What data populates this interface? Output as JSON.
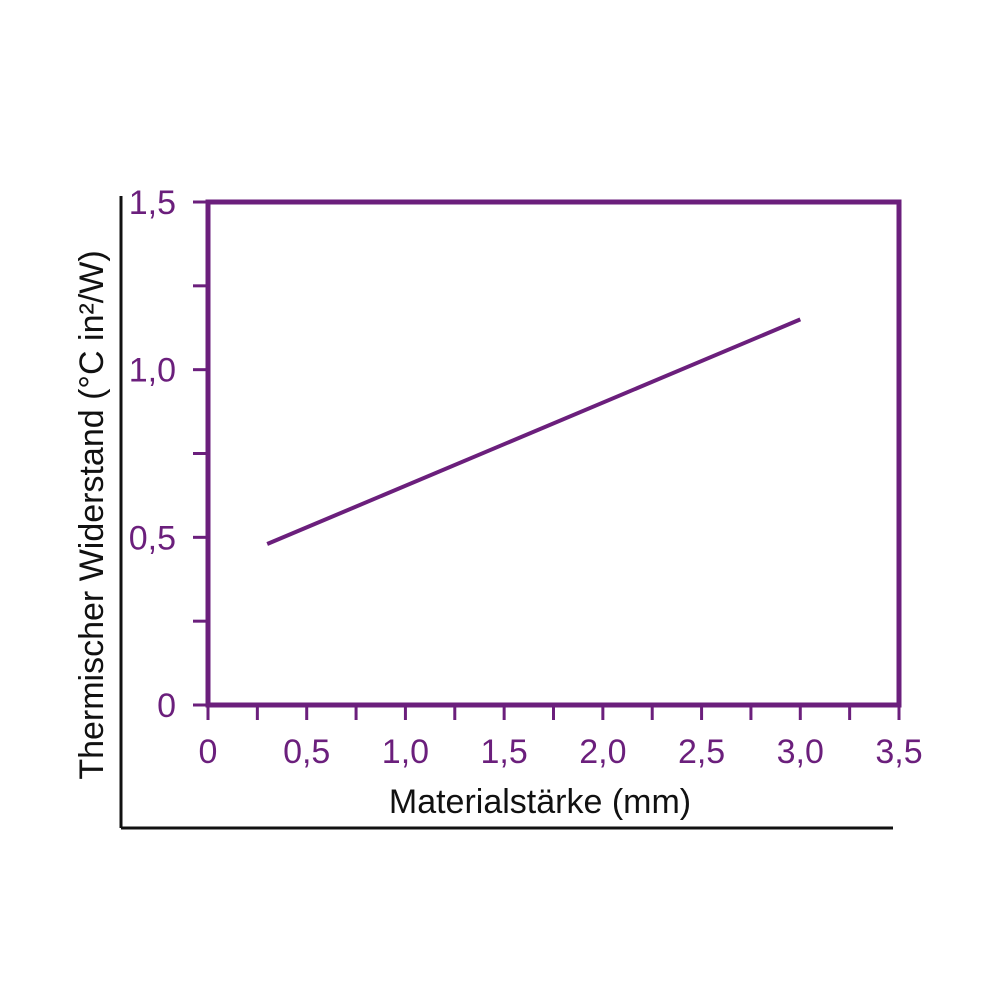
{
  "colors": {
    "accent": "#6b1f7c",
    "line": "#6b1f7c",
    "outer_axis": "#111111"
  },
  "chart_data": {
    "type": "line",
    "title": "",
    "xlabel": "Materialstärke (mm)",
    "ylabel": "Thermischer Widerstand (°C in²/W)",
    "xlim": [
      0,
      3.5
    ],
    "ylim": [
      0,
      1.5
    ],
    "x_ticks": [
      "0",
      "0,5",
      "1,0",
      "1,5",
      "2,0",
      "2,5",
      "3,0",
      "3,5"
    ],
    "x_tick_values": [
      0,
      0.5,
      1.0,
      1.5,
      2.0,
      2.5,
      3.0,
      3.5
    ],
    "y_ticks": [
      "0",
      "0,5",
      "1,0",
      "1,5"
    ],
    "y_tick_values": [
      0,
      0.5,
      1.0,
      1.5
    ],
    "x_minor_step": 0.25,
    "y_minor_step": 0.25,
    "grid": false,
    "legend": "none",
    "series": [
      {
        "x": [
          0.3,
          3.0
        ],
        "y": [
          0.48,
          1.15
        ]
      }
    ]
  }
}
